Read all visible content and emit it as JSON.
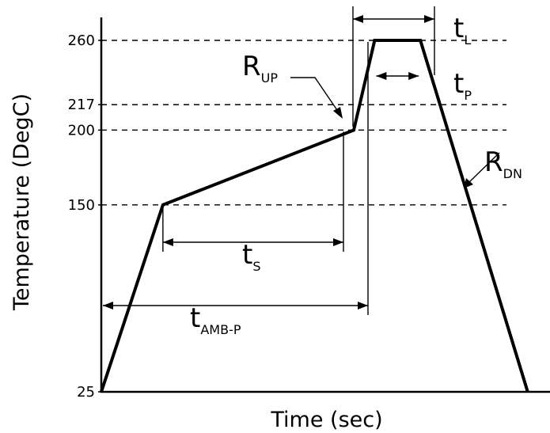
{
  "chart_data": {
    "type": "line",
    "xlabel": "Time (sec)",
    "ylabel": "Temperature (DegC)",
    "y_ticks": [
      {
        "label": "260",
        "value": 260,
        "dashed_guide": true
      },
      {
        "label": "217",
        "value": 217,
        "dashed_guide": true
      },
      {
        "label": "200",
        "value": 200,
        "dashed_guide": true
      },
      {
        "label": "150",
        "value": 150,
        "dashed_guide": true
      },
      {
        "label": "25",
        "value": 25,
        "dashed_guide": false
      }
    ],
    "x_ticks_shown": false,
    "series": [
      {
        "points": [
          {
            "x": 0,
            "y": 25
          },
          {
            "x": 62,
            "y": 150
          },
          {
            "x": 254,
            "y": 200
          },
          {
            "x": 275,
            "y": 260
          },
          {
            "x": 321,
            "y": 260
          },
          {
            "x": 429,
            "y": 25
          }
        ]
      }
    ],
    "annotations": [
      {
        "id": "tL",
        "main": "t",
        "sub": "L",
        "meaning": "dimension arrow: time above 217"
      },
      {
        "id": "tP",
        "main": "t",
        "sub": "P",
        "meaning": "dimension arrow: time at peak 260"
      },
      {
        "id": "RUP",
        "main": "R",
        "sub": "UP",
        "meaning": "leader to ramp-up segment"
      },
      {
        "id": "RDN",
        "main": "R",
        "sub": "DN",
        "meaning": "leader to ramp-down segment"
      },
      {
        "id": "tS",
        "main": "t",
        "sub": "S",
        "meaning": "dimension arrow: soak time 150 to 200"
      },
      {
        "id": "tAMBP",
        "main": "t",
        "sub": "AMB-P",
        "meaning": "dimension arrow: ambient to peak"
      }
    ],
    "grid": false,
    "legend": "none"
  }
}
